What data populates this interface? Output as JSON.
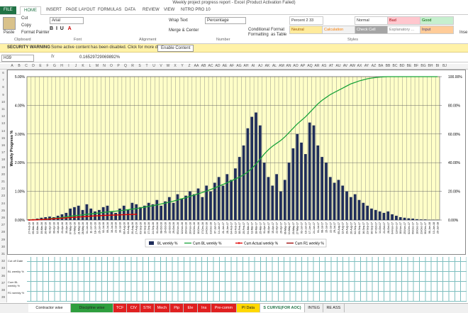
{
  "window": {
    "title": "Weekly project progress report - Excel (Product Activation Failed)"
  },
  "tabs": [
    "FILE",
    "HOME",
    "INSERT",
    "PAGE LAYOUT",
    "FORMULAS",
    "DATA",
    "REVIEW",
    "VIEW",
    "NITRO PRO 10"
  ],
  "ribbon": {
    "paste": "Paste",
    "cut": "Cut",
    "copy": "Copy",
    "format_painter": "Format Painter",
    "clipboard": "Clipboard",
    "font_name": "Arial",
    "font": "Font",
    "wrap_text": "Wrap Text",
    "merge_center": "Merge & Center",
    "alignment": "Alignment",
    "number_format": "Percentage",
    "number": "Number",
    "conditional_formatting": "Conditional Formatting",
    "format_as_table": "Format as Table",
    "styles": "Styles",
    "insert": "Inse",
    "style_cells": [
      [
        "Percent 2 33",
        "Normal",
        "Bad",
        "Good"
      ],
      [
        "Neutral",
        "Calculation",
        "Check Cell",
        "Explanatory ...",
        "Input"
      ]
    ]
  },
  "security": {
    "label": "SECURITY WARNING",
    "message": "Some active content has been disabled. Click for more details.",
    "button": "Enable Content"
  },
  "formula_bar": {
    "name_box": "H39",
    "formula": "0.16529729069892%"
  },
  "columns": [
    "A",
    "B",
    "C",
    "D",
    "E",
    "F",
    "G",
    "H",
    "I",
    "J",
    "K",
    "L",
    "M",
    "N",
    "O",
    "P",
    "Q",
    "R",
    "S",
    "T",
    "U",
    "V",
    "W",
    "X",
    "Y",
    "Z",
    "AA",
    "AB",
    "AC",
    "AD",
    "AE",
    "AF",
    "AG",
    "AH",
    "AI",
    "AJ",
    "AK",
    "AL",
    "AM",
    "AN",
    "AO",
    "AP",
    "AQ",
    "AR",
    "AS",
    "AT",
    "AU",
    "AV",
    "AW",
    "AX",
    "AY",
    "AZ",
    "BA",
    "BB",
    "BC",
    "BD",
    "BE",
    "BF",
    "BG",
    "BH",
    "BI",
    "BJ"
  ],
  "rows": [
    6,
    7,
    8,
    9,
    10,
    11,
    12,
    13,
    14,
    15,
    16,
    17,
    18,
    19,
    20,
    21,
    22,
    23,
    24,
    25,
    26,
    27,
    28,
    29,
    30,
    31,
    32,
    33,
    36,
    37,
    38,
    39
  ],
  "table_labels": [
    "Cut off Date",
    "BL weekly %",
    "Cum BL weekly %",
    "R1 weekly %"
  ],
  "sheet_tabs": [
    "Contractor wise",
    "Discipline wise",
    "TCF",
    "CIV",
    "STR",
    "Mech",
    "Pip",
    "Ele",
    "Ins",
    "Pre-comm",
    "PI Data",
    "S CURVE(FOR AOC)",
    "INTEG",
    "RE ASS"
  ],
  "chart_data": {
    "type": "bar",
    "y_label": "Weekly Progress %",
    "grid": true,
    "legend": "bottom",
    "background": "#ffffc8",
    "ylim": [
      0,
      5
    ],
    "yticks": [
      {
        "value": 0,
        "label": "0.00%"
      },
      {
        "value": 1,
        "label": "1.00%"
      },
      {
        "value": 2,
        "label": "2.00%"
      },
      {
        "value": 3,
        "label": "3.00%"
      },
      {
        "value": 4,
        "label": "4.00%"
      },
      {
        "value": 5,
        "label": "5.00%"
      }
    ],
    "y2lim": [
      0,
      100
    ],
    "y2ticks": [
      {
        "value": 0,
        "label": "0.00%"
      },
      {
        "value": 20,
        "label": "20.00%"
      },
      {
        "value": 40,
        "label": "40.00%"
      },
      {
        "value": 60,
        "label": "60.00%"
      },
      {
        "value": 80,
        "label": "80.00%"
      },
      {
        "value": 100,
        "label": "100.00%"
      }
    ],
    "categories": [
      "27-Feb-16",
      "05-Mar-16",
      "12-Mar-16",
      "19-Mar-16",
      "26-Mar-16",
      "02-Apr-16",
      "09-Apr-16",
      "16-Apr-16",
      "23-Apr-16",
      "30-Apr-16",
      "07-May-16",
      "14-May-16",
      "21-May-16",
      "28-May-16",
      "04-Jun-16",
      "11-Jun-16",
      "18-Jun-16",
      "25-Jun-16",
      "02-Jul-16",
      "09-Jul-16",
      "16-Jul-16",
      "23-Jul-16",
      "30-Jul-16",
      "06-Aug-16",
      "13-Aug-16",
      "20-Aug-16",
      "27-Aug-16",
      "03-Sep-16",
      "10-Sep-16",
      "17-Sep-16",
      "24-Sep-16",
      "01-Oct-16",
      "08-Oct-16",
      "15-Oct-16",
      "22-Oct-16",
      "29-Oct-16",
      "05-Nov-16",
      "12-Nov-16",
      "19-Nov-16",
      "26-Nov-16",
      "03-Dec-16",
      "10-Dec-16",
      "17-Dec-16",
      "24-Dec-16",
      "31-Dec-16",
      "07-Jan-17",
      "14-Jan-17",
      "21-Jan-17",
      "28-Jan-17",
      "04-Feb-17",
      "11-Feb-17",
      "18-Feb-17",
      "25-Feb-17",
      "04-Mar-17",
      "11-Mar-17",
      "18-Mar-17",
      "25-Mar-17",
      "01-Apr-17",
      "08-Apr-17",
      "15-Apr-17",
      "22-Apr-17",
      "29-Apr-17",
      "06-May-17",
      "13-May-17",
      "20-May-17",
      "27-May-17",
      "03-Jun-17",
      "10-Jun-17",
      "17-Jun-17",
      "24-Jun-17",
      "01-Jul-17",
      "08-Jul-17",
      "15-Jul-17",
      "22-Jul-17",
      "29-Jul-17",
      "05-Aug-17",
      "12-Aug-17",
      "19-Aug-17",
      "26-Aug-17",
      "02-Sep-17",
      "09-Sep-17",
      "16-Sep-17",
      "23-Sep-17",
      "30-Sep-17",
      "07-Oct-17",
      "14-Oct-17",
      "21-Oct-17",
      "28-Oct-17",
      "04-Nov-17",
      "11-Nov-17",
      "18-Nov-17",
      "25-Nov-17",
      "02-Dec-17",
      "09-Dec-17",
      "16-Dec-17",
      "23-Dec-17",
      "30-Dec-17",
      "06-Jan-18",
      "13-Jan-18",
      "20-Jan-18"
    ],
    "series": [
      {
        "name": "BL weekly %",
        "type": "bar",
        "color": "#1f2d5a",
        "values": [
          0.02,
          0.03,
          0.05,
          0.08,
          0.1,
          0.12,
          0.1,
          0.15,
          0.2,
          0.25,
          0.4,
          0.45,
          0.5,
          0.35,
          0.55,
          0.4,
          0.3,
          0.35,
          0.45,
          0.5,
          0.3,
          0.25,
          0.4,
          0.5,
          0.35,
          0.6,
          0.55,
          0.45,
          0.5,
          0.6,
          0.55,
          0.7,
          0.5,
          0.65,
          0.8,
          0.6,
          0.9,
          0.75,
          0.85,
          1.0,
          0.9,
          1.1,
          0.8,
          1.2,
          1.0,
          1.3,
          1.5,
          1.2,
          1.6,
          1.4,
          1.8,
          2.2,
          2.6,
          3.2,
          3.6,
          3.75,
          3.3,
          2.0,
          1.5,
          1.2,
          1.6,
          1.0,
          1.4,
          2.0,
          2.5,
          3.0,
          2.7,
          2.3,
          3.4,
          3.3,
          2.6,
          2.2,
          2.0,
          1.5,
          1.3,
          1.4,
          1.2,
          1.0,
          0.8,
          0.9,
          0.7,
          0.6,
          0.5,
          0.4,
          0.35,
          0.3,
          0.25,
          0.3,
          0.2,
          0.15,
          0.1,
          0.08,
          0.06,
          0.05,
          0.03,
          0.02,
          0.02,
          0.01,
          0.01,
          0.01
        ]
      },
      {
        "name": "Cum BL weekly %",
        "type": "line",
        "axis": "y2",
        "color": "#1aa33a",
        "values": [
          0,
          0.1,
          0.2,
          0.4,
          0.6,
          0.9,
          1.2,
          1.5,
          1.8,
          2.2,
          2.6,
          3.0,
          3.3,
          3.6,
          4.0,
          4.3,
          4.6,
          5.0,
          5.3,
          5.6,
          5.9,
          6.2,
          6.5,
          6.8,
          7.2,
          7.6,
          8.0,
          8.5,
          9.0,
          9.5,
          10.0,
          10.6,
          11.2,
          11.8,
          12.5,
          13.2,
          14.0,
          14.8,
          15.6,
          16.5,
          17.4,
          18.3,
          19.2,
          20.2,
          21.3,
          22.4,
          23.6,
          24.8,
          26.0,
          27.3,
          28.6,
          30.0,
          31.5,
          33.5,
          36.0,
          39.0,
          42.5,
          46.0,
          49.0,
          51.5,
          53.5,
          55.5,
          58.0,
          61.0,
          64.0,
          67.0,
          69.5,
          72.0,
          75.0,
          78.0,
          81.0,
          83.5,
          85.5,
          87.5,
          89.0,
          90.5,
          92.0,
          93.5,
          95.0,
          96.0,
          97.0,
          97.8,
          98.5,
          99.0,
          99.4,
          99.7,
          99.9,
          100,
          100,
          100,
          100,
          100,
          100,
          100,
          100,
          100,
          100,
          100,
          100,
          100
        ]
      },
      {
        "name": "Cum Actual weekly %",
        "type": "line",
        "axis": "y2",
        "markers": true,
        "color": "#e00000",
        "values": [
          0,
          0.1,
          0.2,
          0.3,
          0.5,
          0.7,
          0.9,
          1.1,
          1.3,
          1.5,
          1.7,
          1.9,
          2.1,
          2.3,
          2.5,
          2.7,
          2.9,
          3.0,
          3.2,
          3.3,
          3.4,
          3.5,
          3.6,
          3.7,
          3.8,
          3.9,
          4.0,
          null,
          null,
          null,
          null,
          null,
          null,
          null,
          null,
          null,
          null,
          null,
          null,
          null,
          null,
          null,
          null,
          null,
          null,
          null,
          null,
          null,
          null,
          null,
          null,
          null,
          null,
          null,
          null,
          null,
          null,
          null,
          null,
          null,
          null,
          null,
          null,
          null,
          null,
          null,
          null,
          null,
          null,
          null,
          null,
          null,
          null,
          null,
          null,
          null,
          null,
          null,
          null,
          null,
          null,
          null,
          null,
          null,
          null,
          null,
          null,
          null,
          null,
          null,
          null,
          null,
          null,
          null,
          null,
          null,
          null,
          null,
          null,
          null
        ]
      },
      {
        "name": "Cum R1 weekly %",
        "type": "line",
        "axis": "y2",
        "color": "#9b0000",
        "values": [
          null,
          null,
          null,
          null,
          null,
          null,
          null,
          null,
          null,
          null,
          null,
          null,
          null,
          null,
          null,
          null,
          null,
          null,
          null,
          null,
          null,
          null,
          null,
          null,
          null,
          null,
          null,
          null,
          null,
          null,
          null,
          null,
          null,
          null,
          null,
          null,
          null,
          null,
          null,
          null,
          null,
          null,
          null,
          null,
          null,
          null,
          null,
          null,
          null,
          null,
          null,
          null,
          null,
          null,
          null,
          null,
          null,
          null,
          null,
          null,
          null,
          null,
          null,
          null,
          null,
          null,
          null,
          null,
          null,
          null,
          null,
          null,
          null,
          null,
          null,
          null,
          null,
          null,
          null,
          null,
          null,
          null,
          null,
          null,
          null,
          null,
          null,
          null,
          null,
          null,
          null,
          null,
          null,
          null,
          null,
          null,
          null,
          null,
          null,
          null
        ]
      }
    ]
  }
}
